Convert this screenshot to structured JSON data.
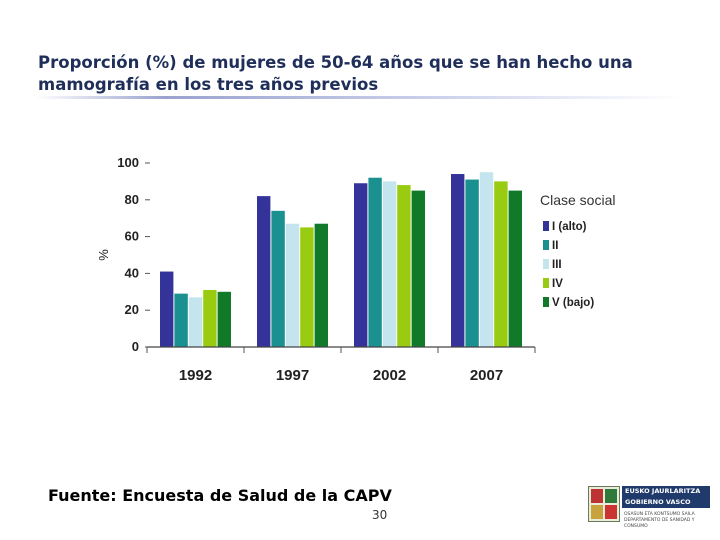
{
  "slide": {
    "title": "Proporción (%) de mujeres de 50-64 años que se han hecho una mamografía en los tres años previos",
    "source": "Fuente: Encuesta de Salud de la CAPV",
    "page_number": "30",
    "logo": {
      "line1": "EUSKO JAURLARITZA",
      "line2": "GOBIERNO VASCO",
      "sub1": "OSASUN ETA KONTSUMO SAILA",
      "sub2": "DEPARTAMENTO DE SANIDAD Y CONSUMO"
    }
  },
  "chart_data": {
    "type": "bar",
    "title": "",
    "ylabel": "%",
    "xlabel": "",
    "ylim": [
      0,
      100
    ],
    "yticks": [
      0,
      20,
      40,
      60,
      80,
      100
    ],
    "categories": [
      "1992",
      "1997",
      "2002",
      "2007"
    ],
    "legend_title": "Clase social",
    "legend_position": "right",
    "grid": false,
    "series": [
      {
        "name": "I (alto)",
        "color": "#33339a",
        "values": [
          41,
          82,
          89,
          94
        ]
      },
      {
        "name": "II",
        "color": "#1a9090",
        "values": [
          29,
          74,
          92,
          91
        ]
      },
      {
        "name": "III",
        "color": "#c4e4ee",
        "values": [
          27,
          67,
          90,
          95
        ]
      },
      {
        "name": "IV",
        "color": "#99cc11",
        "values": [
          31,
          65,
          88,
          90
        ]
      },
      {
        "name": "V (bajo)",
        "color": "#117a28",
        "values": [
          30,
          67,
          85,
          85
        ]
      }
    ]
  }
}
